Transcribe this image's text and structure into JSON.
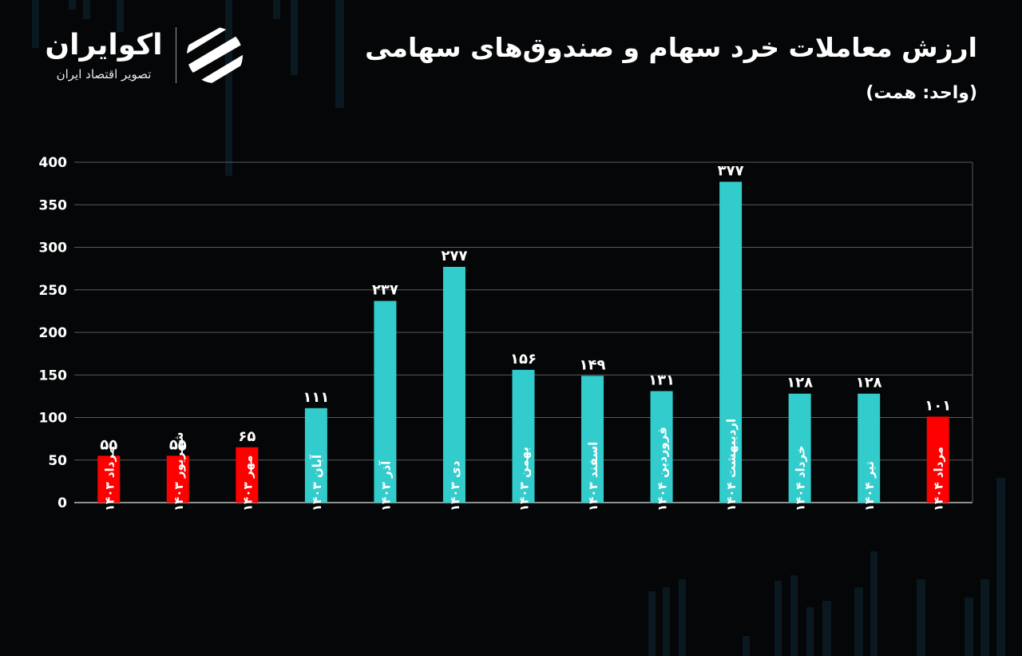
{
  "header": {
    "title": "ارزش معاملات خرد سهام و صندوق‌های سهامی",
    "subtitle": "(واحد: همت)"
  },
  "brand": {
    "name": "اکوایران",
    "tagline": "تصویر اقتصاد ایران",
    "logo_icon": "stripes-logo-icon"
  },
  "colors": {
    "background": "#050607",
    "bar_highlight": "#ff0000",
    "bar_default": "#33cccc",
    "grid": "#5a5a5a",
    "text": "#ffffff"
  },
  "chart_data": {
    "type": "bar",
    "title": "ارزش معاملات خرد سهام و صندوق‌های سهامی",
    "subtitle": "(واحد: همت)",
    "xlabel": "",
    "ylabel": "",
    "ylim": [
      0,
      400
    ],
    "yticks": [
      0,
      50,
      100,
      150,
      200,
      250,
      300,
      350,
      400
    ],
    "ytick_labels": [
      "0",
      "50",
      "100",
      "150",
      "200",
      "250",
      "300",
      "350",
      "400"
    ],
    "grid": true,
    "categories": [
      "مرداد ۱۴۰۳",
      "شهریور ۱۴۰۳",
      "مهر ۱۴۰۳",
      "آبان ۱۴۰۳",
      "آذر ۱۴۰۳",
      "دی ۱۴۰۳",
      "بهمن ۱۴۰۳",
      "اسفند ۱۴۰۳",
      "فروردین ۱۴۰۴",
      "اردیبهشت ۱۴۰۴",
      "خرداد ۱۴۰۴",
      "تیر ۱۴۰۴",
      "مرداد ۱۴۰۴"
    ],
    "values": [
      55,
      55,
      65,
      111,
      237,
      277,
      156,
      149,
      131,
      377,
      128,
      128,
      101
    ],
    "data_labels": [
      "۵۵",
      "۵۵",
      "۶۵",
      "۱۱۱",
      "۲۳۷",
      "۲۷۷",
      "۱۵۶",
      "۱۴۹",
      "۱۳۱",
      "۳۷۷",
      "۱۲۸",
      "۱۲۸",
      "۱۰۱"
    ],
    "bar_colors": [
      "#ff0000",
      "#ff0000",
      "#ff0000",
      "#33cccc",
      "#33cccc",
      "#33cccc",
      "#33cccc",
      "#33cccc",
      "#33cccc",
      "#33cccc",
      "#33cccc",
      "#33cccc",
      "#ff0000"
    ]
  }
}
